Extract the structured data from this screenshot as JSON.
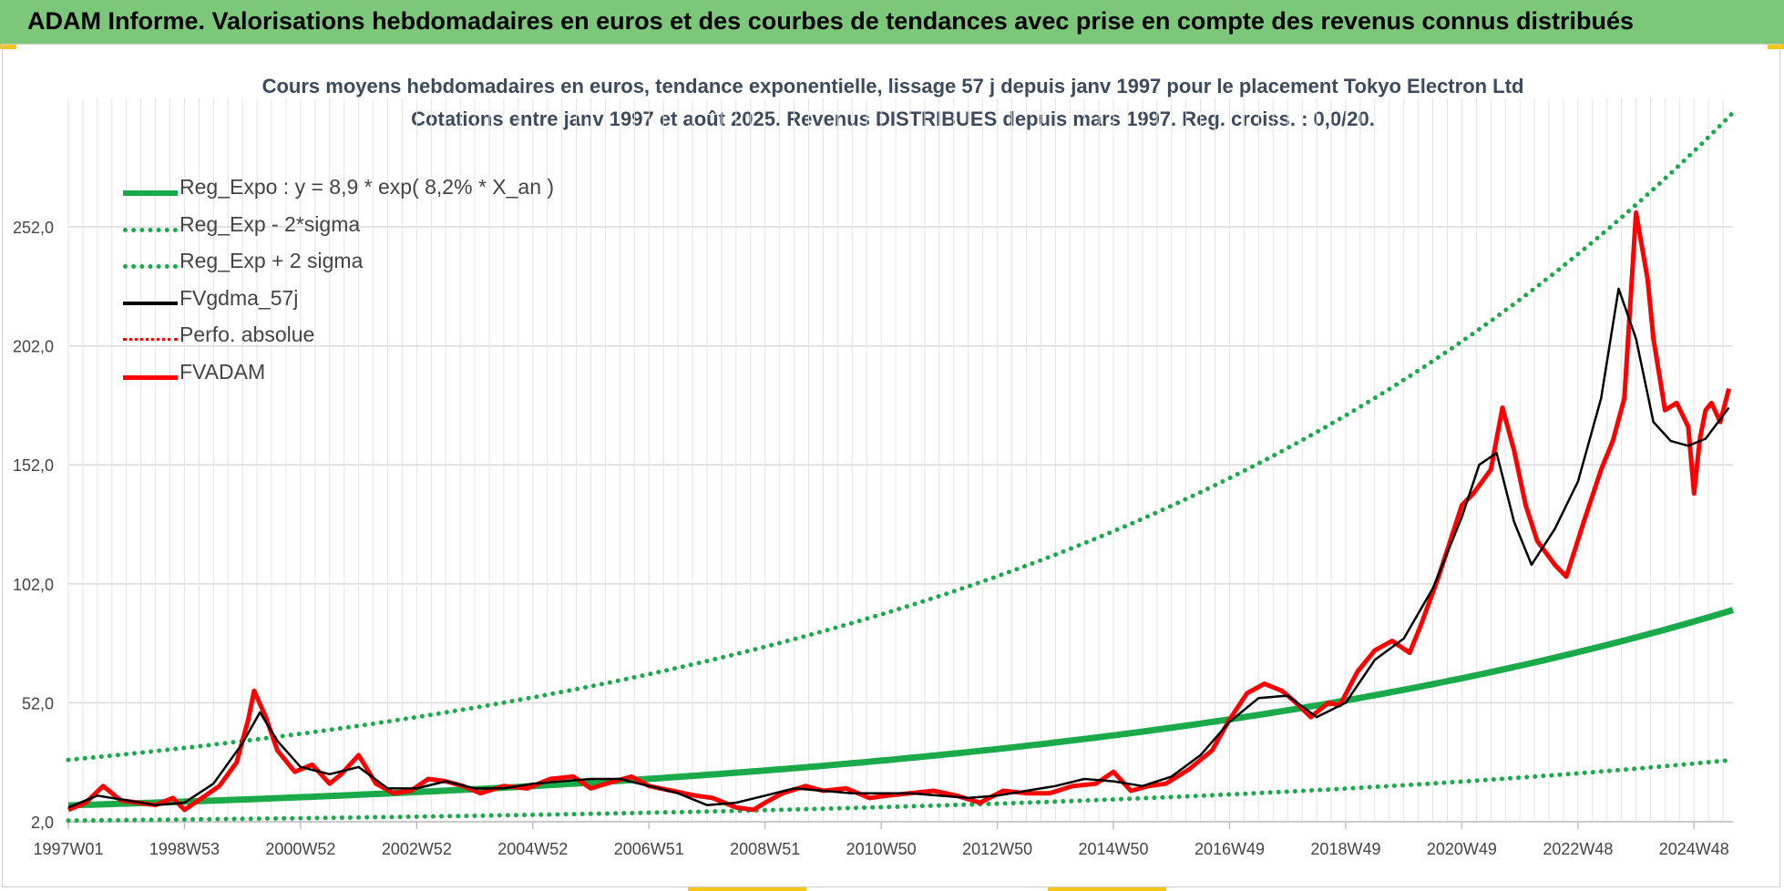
{
  "header": {
    "title": "ADAM Informe. Valorisations hebdomadaires en euros et des courbes de tendances avec prise en compte des revenus connus distribués"
  },
  "colors": {
    "banner": "#7cc87a",
    "reg_expo": "#1aaa4a",
    "fvgdma": "#000000",
    "fvadam": "#ff0000",
    "perfo": "#ff0000",
    "grid": "#d9d9d9"
  },
  "chart_data": {
    "type": "line",
    "title": "Cours moyens hebdomadaires en euros, tendance exponentielle, lissage 57 j depuis janv 1997 pour le placement Tokyo Electron Ltd",
    "subtitle": "Cotations entre janv 1997 et août 2025.  Revenus DISTRIBUES depuis mars 1997. Reg. croiss. : 0,0/20.",
    "xlabel": "",
    "ylabel": "",
    "grid": true,
    "legend_position": "top-left",
    "x_ticks": [
      "1997W01",
      "1998W53",
      "2000W52",
      "2002W52",
      "2004W52",
      "2006W51",
      "2008W51",
      "2010W50",
      "2012W50",
      "2014W50",
      "2016W49",
      "2018W49",
      "2020W49",
      "2022W48",
      "2024W48"
    ],
    "x_tick_years": [
      1997.0,
      1999.0,
      2001.0,
      2003.0,
      2005.0,
      2007.0,
      2009.0,
      2011.0,
      2013.0,
      2015.0,
      2017.0,
      2019.0,
      2021.0,
      2023.0,
      2025.0
    ],
    "x_range": [
      1997.0,
      2025.67
    ],
    "y_ticks": [
      "2,0",
      "52,0",
      "102,0",
      "152,0",
      "202,0",
      "252,0"
    ],
    "y_tick_values": [
      2,
      52,
      102,
      152,
      202,
      252
    ],
    "ylim": [
      2,
      306
    ],
    "legend": [
      {
        "key": "reg_expo",
        "label": "Reg_Expo : y = 8,9 * exp( 8,2% *  X_an )"
      },
      {
        "key": "reg_minus",
        "label": "Reg_Exp - 2*sigma"
      },
      {
        "key": "reg_plus",
        "label": "Reg_Exp + 2 sigma"
      },
      {
        "key": "fvgdma",
        "label": "FVgdma_57j"
      },
      {
        "key": "perfo",
        "label": "Perfo. absolue"
      },
      {
        "key": "fvadam",
        "label": "FVADAM"
      }
    ],
    "trend": {
      "reg_expo": {
        "start": 8.9,
        "end": 91
      },
      "reg_minus": {
        "start": 2.5,
        "end": 28
      },
      "reg_plus": {
        "start": 28,
        "end": 300
      }
    },
    "series": [
      {
        "name": "FVADAM",
        "x": [
          1997.0,
          1997.3,
          1997.6,
          1997.9,
          1998.2,
          1998.5,
          1998.8,
          1999.0,
          1999.3,
          1999.6,
          1999.9,
          2000.1,
          2000.2,
          2000.4,
          2000.6,
          2000.9,
          2001.2,
          2001.5,
          2001.7,
          2002.0,
          2002.3,
          2002.6,
          2002.9,
          2003.2,
          2003.5,
          2003.8,
          2004.1,
          2004.5,
          2004.9,
          2005.3,
          2005.7,
          2006.0,
          2006.4,
          2006.7,
          2007.0,
          2007.4,
          2007.8,
          2008.1,
          2008.5,
          2008.8,
          2009.0,
          2009.3,
          2009.7,
          2010.0,
          2010.4,
          2010.8,
          2011.1,
          2011.5,
          2011.9,
          2012.3,
          2012.7,
          2013.1,
          2013.5,
          2013.9,
          2014.3,
          2014.7,
          2015.0,
          2015.3,
          2015.6,
          2015.9,
          2016.3,
          2016.7,
          2017.0,
          2017.3,
          2017.6,
          2017.9,
          2018.1,
          2018.4,
          2018.7,
          2018.9,
          2019.2,
          2019.5,
          2019.8,
          2020.1,
          2020.3,
          2020.6,
          2020.8,
          2021.0,
          2021.2,
          2021.5,
          2021.7,
          2021.9,
          2022.1,
          2022.3,
          2022.6,
          2022.8,
          2023.1,
          2023.4,
          2023.6,
          2023.8,
          2024.0,
          2024.2,
          2024.3,
          2024.5,
          2024.7,
          2024.9,
          2025.0,
          2025.1,
          2025.2,
          2025.3,
          2025.45,
          2025.6
        ],
        "values": [
          7,
          10,
          17,
          11,
          10,
          9,
          12,
          7,
          12,
          17,
          27,
          45,
          57,
          46,
          32,
          23,
          26,
          18,
          22,
          30,
          18,
          14,
          15,
          20,
          19,
          17,
          14,
          17,
          16,
          20,
          21,
          16,
          19,
          21,
          17,
          15,
          13,
          12,
          8,
          7,
          10,
          14,
          17,
          15,
          16,
          12,
          13,
          14,
          15,
          13,
          10,
          15,
          14,
          14,
          17,
          18,
          23,
          15,
          17,
          18,
          24,
          32,
          45,
          56,
          60,
          57,
          53,
          46,
          52,
          51,
          65,
          74,
          78,
          73,
          85,
          105,
          120,
          135,
          140,
          150,
          176,
          158,
          135,
          120,
          110,
          105,
          128,
          150,
          162,
          180,
          258,
          230,
          205,
          175,
          178,
          168,
          140,
          163,
          175,
          178,
          170,
          184
        ]
      },
      {
        "name": "FVgdma_57j",
        "x": [
          1997.0,
          1997.5,
          1998.0,
          1998.5,
          1999.0,
          1999.5,
          2000.0,
          2000.3,
          2000.6,
          2001.0,
          2001.5,
          2002.0,
          2002.5,
          2003.0,
          2003.5,
          2004.0,
          2004.5,
          2005.0,
          2005.5,
          2006.0,
          2006.5,
          2007.0,
          2007.5,
          2008.0,
          2008.5,
          2009.0,
          2009.5,
          2010.0,
          2010.5,
          2011.0,
          2011.5,
          2012.0,
          2012.5,
          2013.0,
          2013.5,
          2014.0,
          2014.5,
          2015.0,
          2015.5,
          2016.0,
          2016.5,
          2017.0,
          2017.5,
          2018.0,
          2018.5,
          2019.0,
          2019.5,
          2020.0,
          2020.5,
          2021.0,
          2021.3,
          2021.6,
          2021.9,
          2022.2,
          2022.6,
          2023.0,
          2023.4,
          2023.7,
          2024.0,
          2024.3,
          2024.6,
          2024.9,
          2025.2,
          2025.6
        ],
        "values": [
          8,
          13,
          11,
          9,
          10,
          18,
          35,
          48,
          36,
          25,
          22,
          25,
          16,
          16,
          19,
          16,
          16,
          18,
          19,
          20,
          20,
          17,
          14,
          9,
          10,
          13,
          16,
          15,
          14,
          14,
          14,
          13,
          12,
          13,
          15,
          17,
          20,
          19,
          17,
          21,
          30,
          44,
          54,
          55,
          46,
          52,
          70,
          79,
          100,
          130,
          152,
          157,
          128,
          110,
          125,
          145,
          180,
          226,
          205,
          170,
          162,
          160,
          163,
          176
        ]
      }
    ]
  }
}
